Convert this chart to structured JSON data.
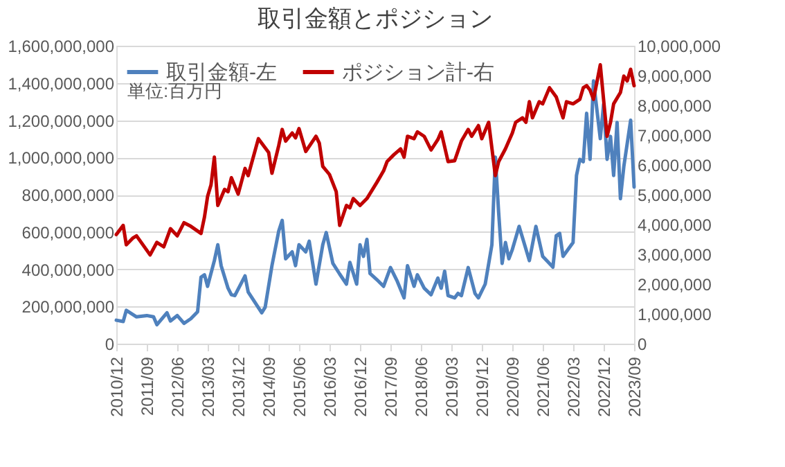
{
  "chart_data": {
    "type": "line",
    "title": "取引金額とポジション",
    "annotations": [
      "単位:百万円"
    ],
    "legend": "top left",
    "grid": "y",
    "xlim": [
      "2010-12",
      "2023-09"
    ],
    "xticks": [
      {
        "value": "2010-12",
        "label": "2010/12"
      },
      {
        "value": "2011-09",
        "label": "2011/09"
      },
      {
        "value": "2012-06",
        "label": "2012/06"
      },
      {
        "value": "2013-03",
        "label": "2013/03"
      },
      {
        "value": "2013-12",
        "label": "2013/12"
      },
      {
        "value": "2014-09",
        "label": "2014/09"
      },
      {
        "value": "2015-06",
        "label": "2015/06"
      },
      {
        "value": "2016-03",
        "label": "2016/03"
      },
      {
        "value": "2016-12",
        "label": "2016/12"
      },
      {
        "value": "2017-09",
        "label": "2017/09"
      },
      {
        "value": "2018-06",
        "label": "2018/06"
      },
      {
        "value": "2019-03",
        "label": "2019/03"
      },
      {
        "value": "2019-12",
        "label": "2019/12"
      },
      {
        "value": "2020-09",
        "label": "2020/09"
      },
      {
        "value": "2021-06",
        "label": "2021/06"
      },
      {
        "value": "2022-03",
        "label": "2022/03"
      },
      {
        "value": "2022-12",
        "label": "2022/12"
      },
      {
        "value": "2023-09",
        "label": "2023/09"
      }
    ],
    "ylim": [
      0,
      1600000000
    ],
    "yticks": [
      0,
      {
        "value": 200000000,
        "label": "200,000,000"
      },
      {
        "value": 400000000,
        "label": "400,000,000"
      },
      {
        "value": 600000000,
        "label": "600,000,000"
      },
      {
        "value": 800000000,
        "label": "800,000,000"
      },
      {
        "value": 1000000000,
        "label": "1,000,000,000"
      },
      {
        "value": 1200000000,
        "label": "1,200,000,000"
      },
      {
        "value": 1400000000,
        "label": "1,400,000,000"
      },
      {
        "value": 1600000000,
        "label": "1,600,000,000"
      }
    ],
    "y2lim": [
      0,
      10000000
    ],
    "y2ticks": [
      0,
      {
        "value": 1000000,
        "label": "1,000,000"
      },
      {
        "value": 2000000,
        "label": "2,000,000"
      },
      {
        "value": 3000000,
        "label": "3,000,000"
      },
      {
        "value": 4000000,
        "label": "4,000,000"
      },
      {
        "value": 5000000,
        "label": "5,000,000"
      },
      {
        "value": 6000000,
        "label": "6,000,000"
      },
      {
        "value": 7000000,
        "label": "7,000,000"
      },
      {
        "value": 8000000,
        "label": "8,000,000"
      },
      {
        "value": 9000000,
        "label": "9,000,000"
      },
      {
        "value": 10000000,
        "label": "10,000,000"
      }
    ],
    "series": [
      {
        "name": "取引金額-左",
        "color": "#4f81bd",
        "x": [
          "2010-12",
          "2011-02",
          "2011-03",
          "2011-06",
          "2011-09",
          "2011-11",
          "2011-12",
          "2012-03",
          "2012-04",
          "2012-06",
          "2012-08",
          "2012-10",
          "2012-12",
          "2013-01",
          "2013-02",
          "2013-03",
          "2013-05",
          "2013-06",
          "2013-07",
          "2013-09",
          "2013-10",
          "2013-11",
          "2014-02",
          "2014-03",
          "2014-07",
          "2014-08",
          "2014-10",
          "2014-12",
          "2015-01",
          "2015-02",
          "2015-04",
          "2015-05",
          "2015-06",
          "2015-08",
          "2015-09",
          "2015-11",
          "2016-01",
          "2016-02",
          "2016-04",
          "2016-06",
          "2016-08",
          "2016-09",
          "2016-11",
          "2016-12",
          "2017-01",
          "2017-02",
          "2017-03",
          "2017-05",
          "2017-07",
          "2017-09",
          "2017-11",
          "2018-01",
          "2018-02",
          "2018-04",
          "2018-05",
          "2018-07",
          "2018-09",
          "2018-11",
          "2018-12",
          "2019-01",
          "2019-02",
          "2019-04",
          "2019-05",
          "2019-06",
          "2019-08",
          "2019-10",
          "2019-11",
          "2020-01",
          "2020-03",
          "2020-04",
          "2020-05",
          "2020-06",
          "2020-07",
          "2020-08",
          "2020-09",
          "2020-11",
          "2021-02",
          "2021-04",
          "2021-06",
          "2021-08",
          "2021-09",
          "2021-10",
          "2021-11",
          "2021-12",
          "2022-03",
          "2022-04",
          "2022-05",
          "2022-06",
          "2022-07",
          "2022-08",
          "2022-09",
          "2022-11",
          "2022-12",
          "2023-01",
          "2023-02",
          "2023-03",
          "2023-04",
          "2023-05",
          "2023-06",
          "2023-08",
          "2023-09"
        ],
        "values": [
          126000000,
          119000000,
          179000000,
          144000000,
          151000000,
          144000000,
          102000000,
          166000000,
          122000000,
          151000000,
          109000000,
          134000000,
          171000000,
          357000000,
          370000000,
          308000000,
          446000000,
          531000000,
          419000000,
          298000000,
          263000000,
          258000000,
          364000000,
          278000000,
          166000000,
          196000000,
          419000000,
          605000000,
          662000000,
          456000000,
          493000000,
          419000000,
          531000000,
          493000000,
          550000000,
          320000000,
          531000000,
          597000000,
          431000000,
          374000000,
          320000000,
          436000000,
          320000000,
          531000000,
          469000000,
          560000000,
          377000000,
          344000000,
          308000000,
          409000000,
          335000000,
          246000000,
          419000000,
          308000000,
          370000000,
          298000000,
          263000000,
          352000000,
          298000000,
          389000000,
          258000000,
          246000000,
          270000000,
          258000000,
          409000000,
          270000000,
          246000000,
          320000000,
          531000000,
          1002000000,
          704000000,
          431000000,
          543000000,
          456000000,
          506000000,
          630000000,
          446000000,
          630000000,
          469000000,
          431000000,
          411000000,
          580000000,
          592000000,
          469000000,
          543000000,
          903000000,
          990000000,
          977000000,
          1237000000,
          990000000,
          1411000000,
          1101000000,
          1287000000,
          990000000,
          1113000000,
          903000000,
          1188000000,
          779000000,
          953000000,
          1200000000,
          841000000
        ]
      },
      {
        "name": "ポジション計-右",
        "color": "#c00000",
        "axis": "y2",
        "x": [
          "2010-12",
          "2011-02",
          "2011-03",
          "2011-05",
          "2011-06",
          "2011-10",
          "2011-12",
          "2012-02",
          "2012-04",
          "2012-06",
          "2012-08",
          "2012-10",
          "2013-01",
          "2013-02",
          "2013-03",
          "2013-04",
          "2013-05",
          "2013-06",
          "2013-08",
          "2013-09",
          "2013-10",
          "2013-12",
          "2014-02",
          "2014-03",
          "2014-06",
          "2014-09",
          "2014-10",
          "2014-12",
          "2015-01",
          "2015-02",
          "2015-04",
          "2015-05",
          "2015-06",
          "2015-08",
          "2015-11",
          "2015-12",
          "2016-01",
          "2016-03",
          "2016-05",
          "2016-06",
          "2016-08",
          "2016-09",
          "2016-10",
          "2016-12",
          "2017-02",
          "2017-05",
          "2017-07",
          "2017-08",
          "2017-10",
          "2017-12",
          "2018-01",
          "2018-02",
          "2018-04",
          "2018-05",
          "2018-07",
          "2018-09",
          "2018-11",
          "2018-12",
          "2019-02",
          "2019-04",
          "2019-06",
          "2019-08",
          "2019-09",
          "2019-11",
          "2019-12",
          "2020-02",
          "2020-04",
          "2020-05",
          "2020-07",
          "2020-09",
          "2020-10",
          "2020-12",
          "2021-01",
          "2021-02",
          "2021-03",
          "2021-05",
          "2021-06",
          "2021-08",
          "2021-10",
          "2021-12",
          "2022-01",
          "2022-03",
          "2022-05",
          "2022-06",
          "2022-07",
          "2022-08",
          "2022-09",
          "2022-11",
          "2023-01",
          "2023-02",
          "2023-03",
          "2023-05",
          "2023-06",
          "2023-07",
          "2023-08",
          "2023-09"
        ],
        "values": [
          3660000,
          3970000,
          3320000,
          3550000,
          3620000,
          2980000,
          3400000,
          3250000,
          3860000,
          3620000,
          4060000,
          3940000,
          3700000,
          4250000,
          4940000,
          5330000,
          6260000,
          4640000,
          5180000,
          5100000,
          5570000,
          5020000,
          5880000,
          5640000,
          6880000,
          6420000,
          5720000,
          6650000,
          7190000,
          6800000,
          7070000,
          6910000,
          7220000,
          6450000,
          6960000,
          6730000,
          5950000,
          5680000,
          5100000,
          3970000,
          4640000,
          4560000,
          4870000,
          4640000,
          4870000,
          5410000,
          5800000,
          6110000,
          6340000,
          6540000,
          6260000,
          6960000,
          6880000,
          7110000,
          6960000,
          6500000,
          6850000,
          7110000,
          6110000,
          6140000,
          6800000,
          7190000,
          6960000,
          7320000,
          6880000,
          7430000,
          5640000,
          6110000,
          6540000,
          7070000,
          7430000,
          7580000,
          7430000,
          8120000,
          7580000,
          8120000,
          8050000,
          8590000,
          8280000,
          7580000,
          8120000,
          8050000,
          8200000,
          8590000,
          8660000,
          8510000,
          8200000,
          9360000,
          6960000,
          7430000,
          8050000,
          8430000,
          8980000,
          8820000,
          9210000,
          8660000
        ]
      }
    ]
  }
}
